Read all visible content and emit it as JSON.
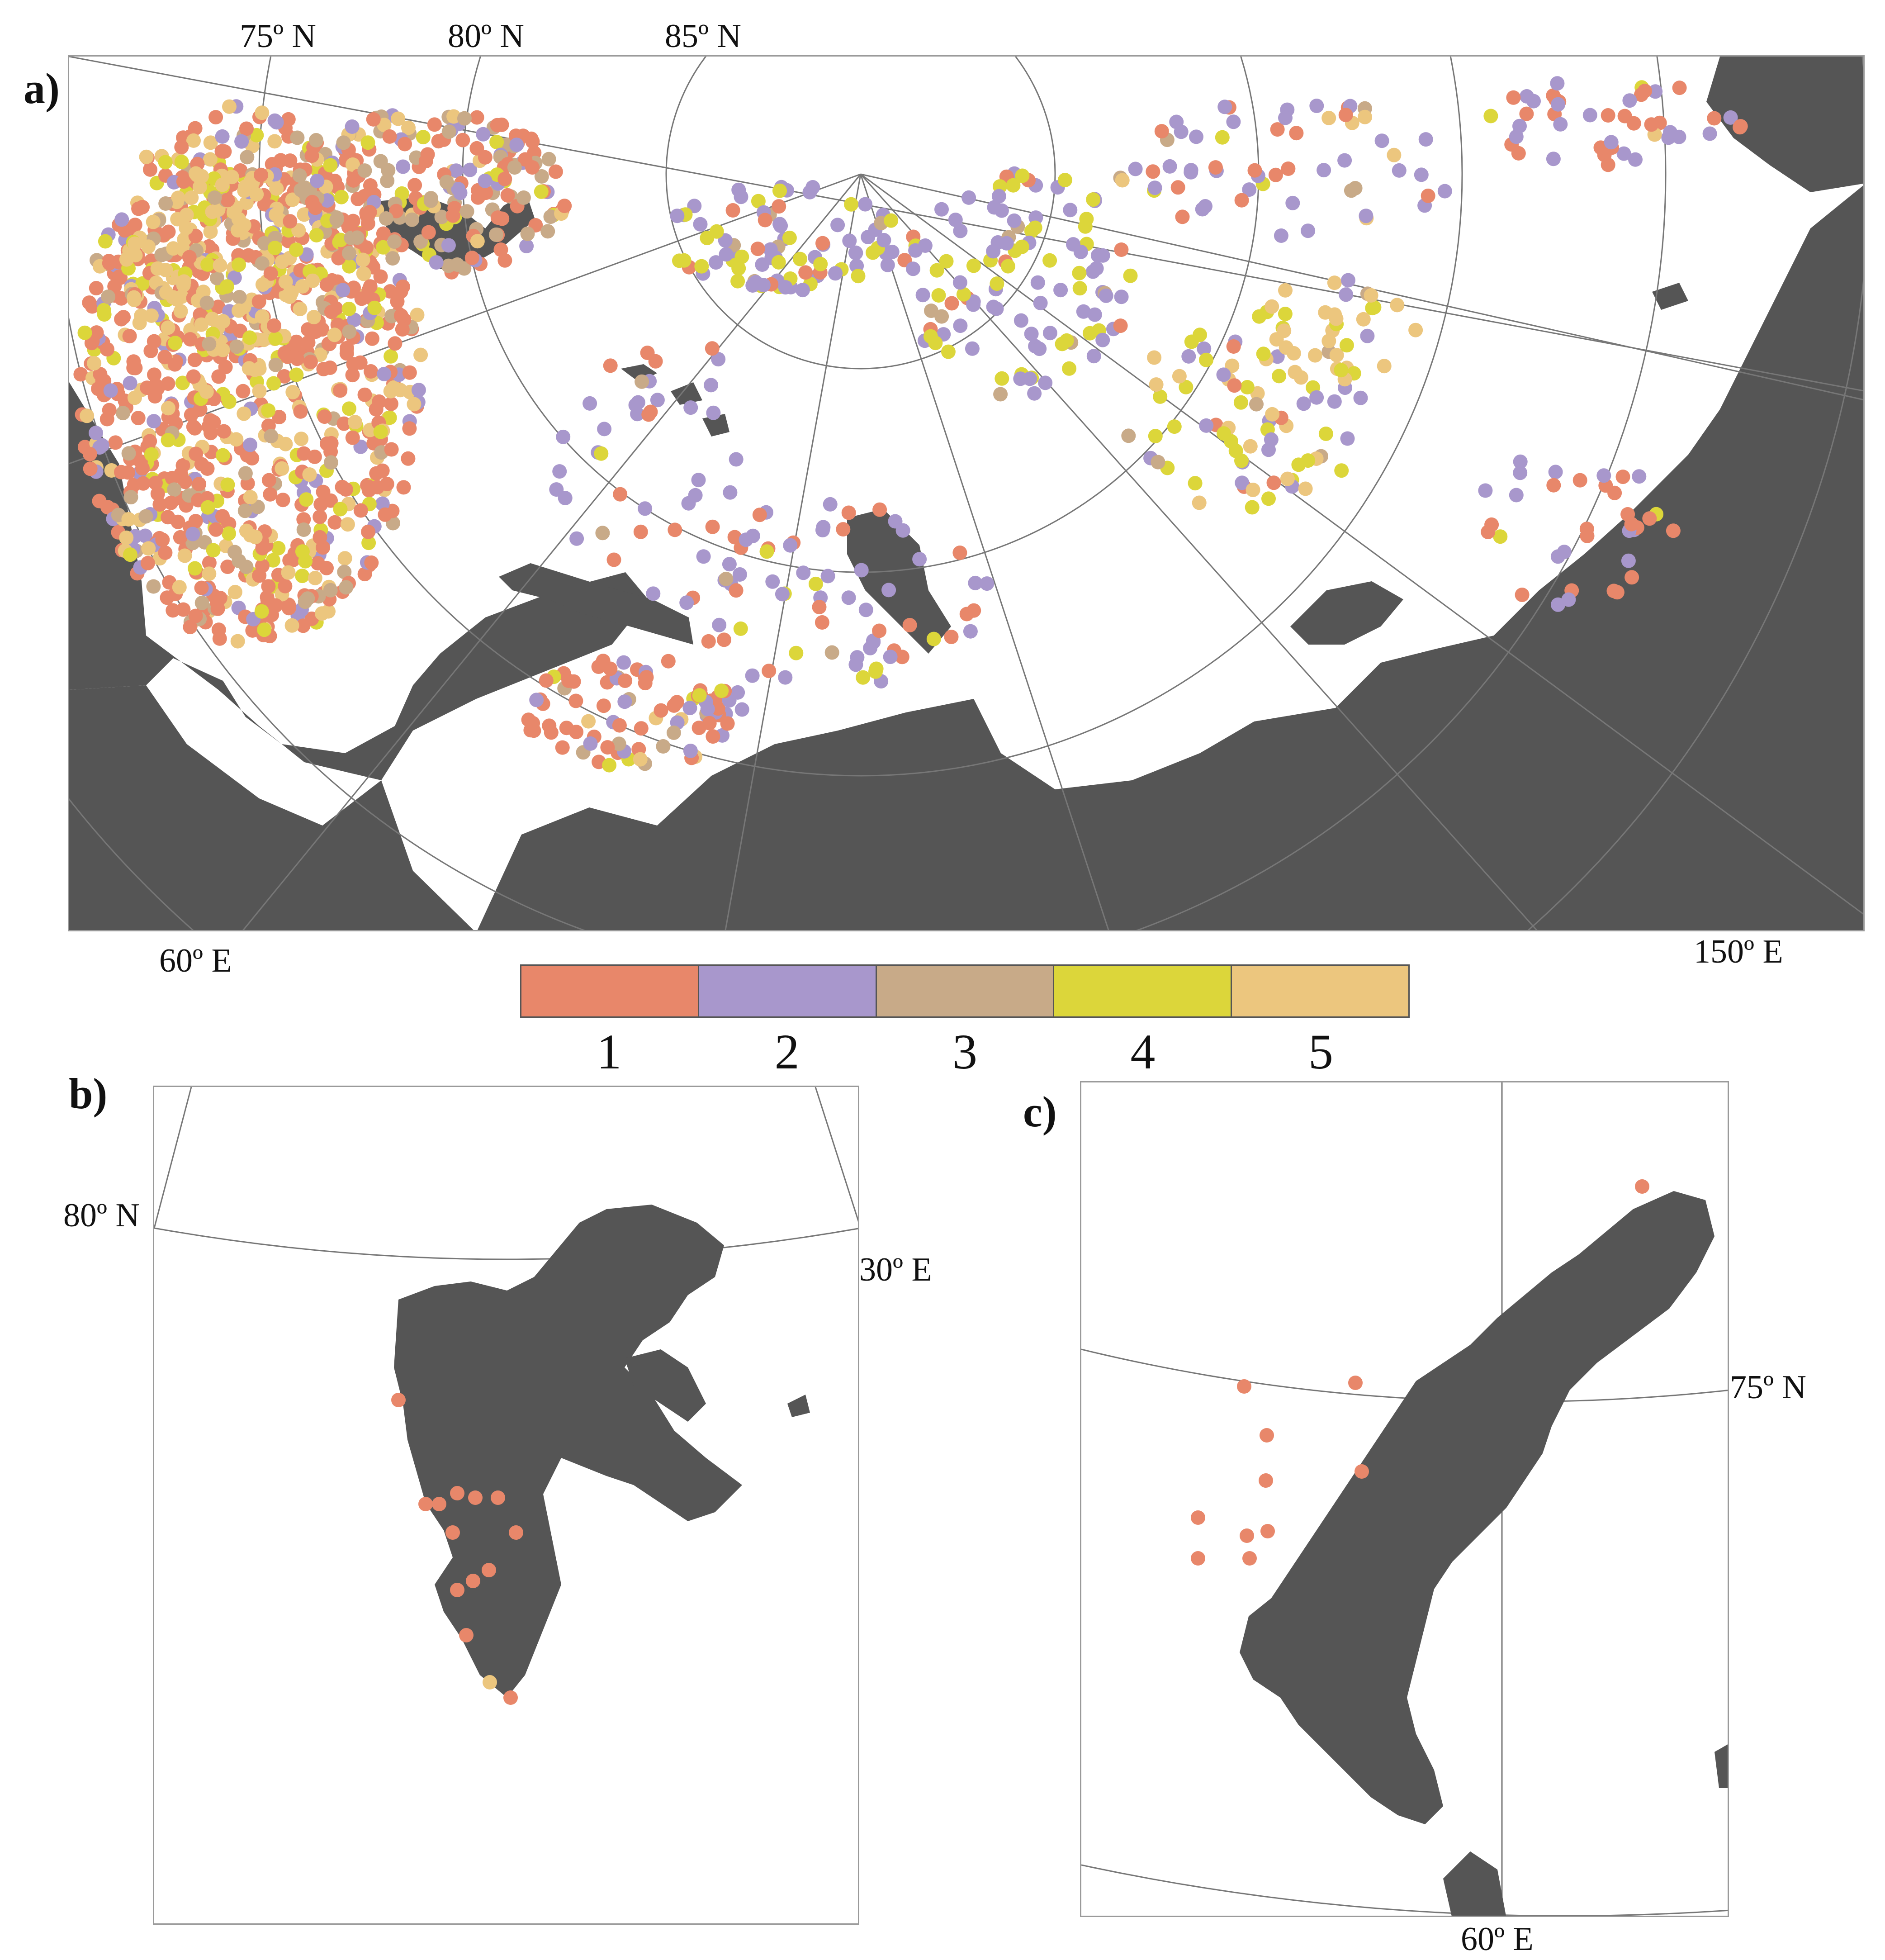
{
  "panels": [
    {
      "letter": "a)"
    },
    {
      "letter": "b)"
    },
    {
      "letter": "c)"
    }
  ],
  "panel_a": {
    "lat_labels": [
      "75º N",
      "80º N",
      "85º N"
    ],
    "lon_labels": [
      "60º E",
      "150º E"
    ]
  },
  "panel_b": {
    "lat_label": "80º N",
    "lon_label": "30º E"
  },
  "panel_c": {
    "lat_label": "75º N",
    "lon_label": "60º E"
  },
  "legend": {
    "items": [
      {
        "label": "1",
        "color": "#e8876a"
      },
      {
        "label": "2",
        "color": "#a897cc"
      },
      {
        "label": "3",
        "color": "#c8aa88"
      },
      {
        "label": "4",
        "color": "#dcd63a"
      },
      {
        "label": "5",
        "color": "#ecc67e"
      }
    ]
  },
  "colors": {
    "land": "#555555",
    "ocean": "#ffffff",
    "graticule": "#777777"
  }
}
